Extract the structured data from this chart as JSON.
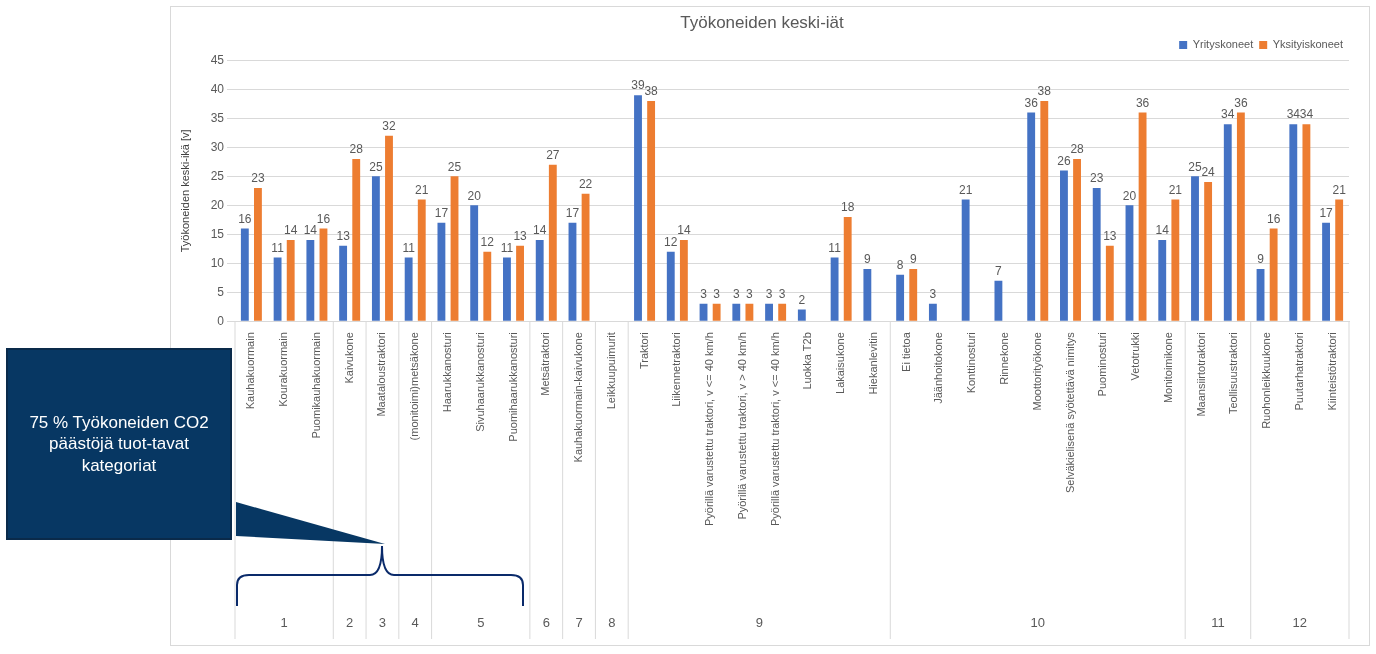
{
  "chart_data": {
    "type": "bar",
    "title": "Työkoneiden keski-iät",
    "ylabel": "Työkoneiden keski-ikä [v]",
    "categories": [
      "Kauhakuormain",
      "Kourakuormain",
      "Puomikauhakuormain",
      "Kaivukone",
      "Maataloustraktori",
      "(monitoimi)metsäkone",
      "Haarukkanosturi",
      "Sivuhaarukkanosturi",
      "Puomihaarukkanosturi",
      "Metsätraktori",
      "Kauhakuormain-kaivukone",
      "Leikkuupuimurit",
      "Traktori",
      "Liikennetraktori",
      "Pyörillä varustettu traktori, v <= 40 km/h",
      "Pyörillä varustettu traktori, v > 40 km/h",
      "Pyörillä varustettu traktori, v <= 40 km/h",
      "Luokka T2b",
      "Lakaisukone",
      "Hiekanlevitin",
      "Ei tietoa",
      "Jäänhoitokone",
      "Konttinosturi",
      "Rinnekone",
      "Moottorityökone",
      "Selväkielisenä syötettävä nimitys",
      "Puominosturi",
      "Vetotrukki",
      "Monitoimikone",
      "Maansiirtotraktori",
      "Teollisuustraktori",
      "Ruohonleikkuukone",
      "Puutarhatraktori",
      "Kiinteistötraktori"
    ],
    "series": [
      {
        "name": "Yrityskoneet",
        "color": "#4472c4",
        "values": [
          16,
          11,
          14,
          13,
          25,
          11,
          17,
          20,
          11,
          14,
          17,
          null,
          39,
          12,
          3,
          3,
          3,
          2,
          11,
          9,
          8,
          3,
          21,
          7,
          36,
          26,
          23,
          20,
          14,
          25,
          34,
          9,
          34,
          17
        ]
      },
      {
        "name": "Yksityiskoneet",
        "color": "#ed7d31",
        "values": [
          23,
          14,
          16,
          28,
          32,
          21,
          25,
          12,
          13,
          27,
          22,
          null,
          38,
          14,
          3,
          3,
          3,
          null,
          18,
          null,
          9,
          null,
          null,
          null,
          38,
          28,
          13,
          36,
          21,
          24,
          36,
          16,
          34,
          21
        ]
      }
    ],
    "ylim": [
      0,
      45
    ],
    "yticks": [
      0,
      5,
      10,
      15,
      20,
      25,
      30,
      35,
      40,
      45
    ],
    "grid": "y",
    "legend": "top right",
    "data_labels": true,
    "annotations": [
      "75 % Työkoneiden CO2 päästöjä tuot-tavat kategoriat",
      "1",
      "2",
      "3",
      "4",
      "5",
      "6",
      "7",
      "8",
      "9",
      "10",
      "11",
      "12"
    ]
  }
}
